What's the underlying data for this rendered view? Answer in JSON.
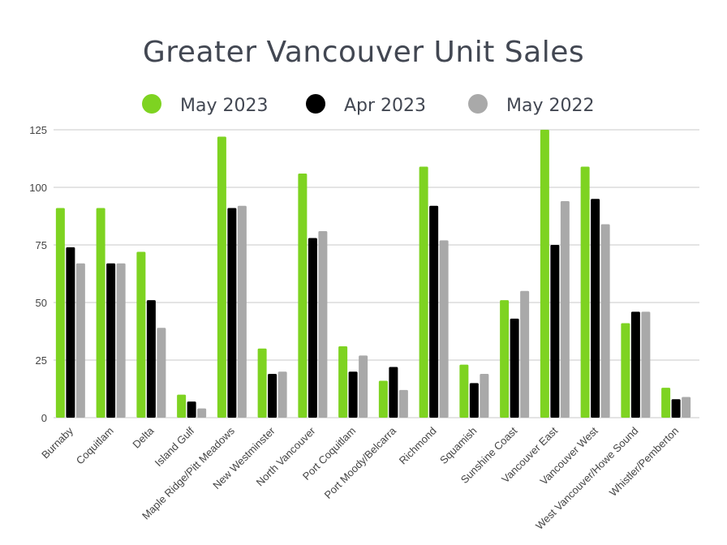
{
  "chart_data": {
    "type": "bar",
    "title": "Greater Vancouver Unit Sales",
    "xlabel": "",
    "ylabel": "",
    "ylim": [
      0,
      125
    ],
    "yticks": [
      "0",
      "25",
      "50",
      "75",
      "100",
      "125"
    ],
    "grid": true,
    "legend_position": "top",
    "categories": [
      "Burnaby",
      "Coquitlam",
      "Delta",
      "Island Gulf",
      "Maple Ridge/Pitt Meadows",
      "New Westminster",
      "North Vancouver",
      "Port Coquitlam",
      "Port Moody/Belcarra",
      "Richmond",
      "Squamish",
      "Sunshine Coast",
      "Vancouver East",
      "Vancouver West",
      "West Vancouver/Howe Sound",
      "Whistler/Pemberton"
    ],
    "series": [
      {
        "name": "May 2023",
        "color": "#7ed321",
        "values": [
          91,
          91,
          72,
          10,
          122,
          30,
          106,
          31,
          16,
          109,
          23,
          51,
          125,
          109,
          41,
          13
        ]
      },
      {
        "name": "Apr 2023",
        "color": "#000000",
        "values": [
          74,
          67,
          51,
          7,
          91,
          19,
          78,
          20,
          22,
          92,
          15,
          43,
          75,
          95,
          46,
          8
        ]
      },
      {
        "name": "May 2022",
        "color": "#a9a9a9",
        "values": [
          67,
          67,
          39,
          4,
          92,
          20,
          81,
          27,
          12,
          77,
          19,
          55,
          94,
          84,
          46,
          9
        ]
      }
    ]
  }
}
